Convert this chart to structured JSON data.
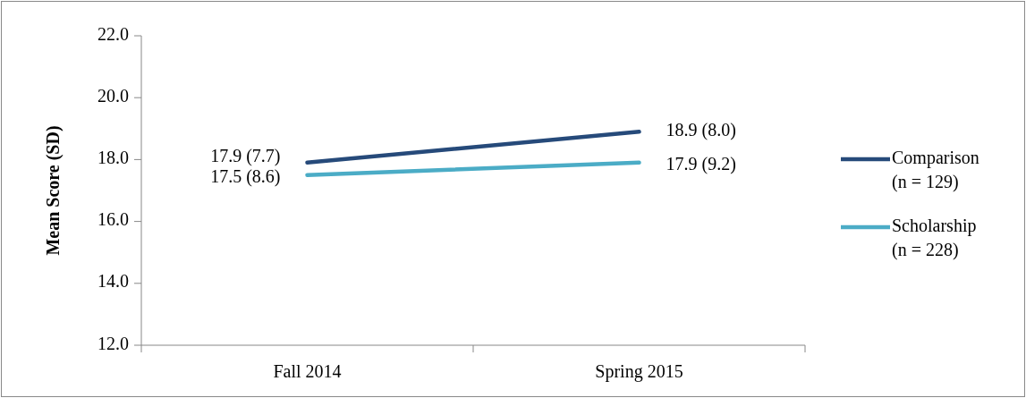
{
  "chart_data": {
    "type": "line",
    "ylabel": "Mean Score (SD)",
    "categories": [
      "Fall 2014",
      "Spring 2015"
    ],
    "series": [
      {
        "name": "Comparison (n = 129)",
        "color": "#264a7a",
        "values": [
          17.9,
          18.9
        ],
        "value_labels": [
          "17.9 (7.7)",
          "18.9 (8.0)"
        ]
      },
      {
        "name": "Scholarship (n = 228)",
        "color": "#4bacc6",
        "values": [
          17.5,
          17.9
        ],
        "value_labels": [
          "17.5 (8.6)",
          "17.9 (9.2)"
        ]
      }
    ],
    "ylim": [
      12,
      22
    ],
    "yticks": [
      {
        "value": 12,
        "label": "12.0"
      },
      {
        "value": 14,
        "label": "14.0"
      },
      {
        "value": 16,
        "label": "16.0"
      },
      {
        "value": 18,
        "label": "18.0"
      },
      {
        "value": 20,
        "label": "20.0"
      },
      {
        "value": 22,
        "label": "22.0"
      }
    ],
    "grid": false,
    "legend": "right",
    "marker": "none",
    "line_style": "solid"
  }
}
